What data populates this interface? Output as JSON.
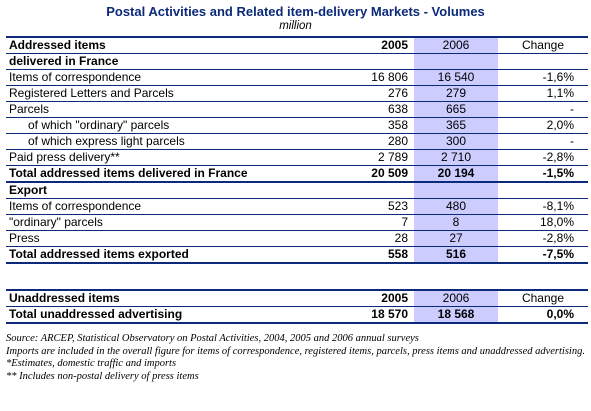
{
  "title": "Postal Activities and Related item-delivery Markets - Volumes",
  "unit": "million",
  "addressed": {
    "header": {
      "label": "Addressed items",
      "y2005": "2005",
      "y2006": "2006",
      "change": "Change"
    },
    "section1": "delivered in France",
    "rows1": [
      {
        "label": "Items of correspondence",
        "y2005": "16 806",
        "y2006": "16 540",
        "change": "-1,6%",
        "indent": false
      },
      {
        "label": "Registered Letters and Parcels",
        "y2005": "276",
        "y2006": "279",
        "change": "1,1%",
        "indent": false
      },
      {
        "label": "Parcels",
        "y2005": "638",
        "y2006": "665",
        "change": "-",
        "indent": false
      },
      {
        "label": "of which \"ordinary\" parcels",
        "y2005": "358",
        "y2006": "365",
        "change": "2,0%",
        "indent": true
      },
      {
        "label": "of which express light parcels",
        "y2005": "280",
        "y2006": "300",
        "change": "-",
        "indent": true
      },
      {
        "label": "Paid press delivery**",
        "y2005": "2 789",
        "y2006": "2 710",
        "change": "-2,8%",
        "indent": false
      }
    ],
    "total1": {
      "label": "Total addressed items delivered in France",
      "y2005": "20 509",
      "y2006": "20 194",
      "change": "-1,5%"
    },
    "section2": "Export",
    "rows2": [
      {
        "label": "Items of correspondence",
        "y2005": "523",
        "y2006": "480",
        "change": "-8,1%"
      },
      {
        "label": "\"ordinary\" parcels",
        "y2005": "7",
        "y2006": "8",
        "change": "18,0%"
      },
      {
        "label": "Press",
        "y2005": "28",
        "y2006": "27",
        "change": "-2,8%"
      }
    ],
    "total2": {
      "label": "Total addressed items exported",
      "y2005": "558",
      "y2006": "516",
      "change": "-7,5%"
    }
  },
  "unaddressed": {
    "header": {
      "label": "Unaddressed items",
      "y2005": "2005",
      "y2006": "2006",
      "change": "Change"
    },
    "total": {
      "label": "Total unaddressed advertising",
      "y2005": "18 570",
      "y2006": "18 568",
      "change": "0,0%"
    }
  },
  "notes": [
    "Source: ARCEP, Statistical Observatory on Postal Activities, 2004, 2005 and 2006 annual surveys",
    "Imports are included in the overall figure for items of correspondence, registered items, parcels, press items and unaddressed advertising.",
    "*Estimates, domestic traffic and imports",
    "** Includes non-postal delivery of press items"
  ],
  "colors": {
    "header_rule": "#0b2a7a",
    "highlight_2006": "#ccccff",
    "title": "#0b2a7a"
  }
}
